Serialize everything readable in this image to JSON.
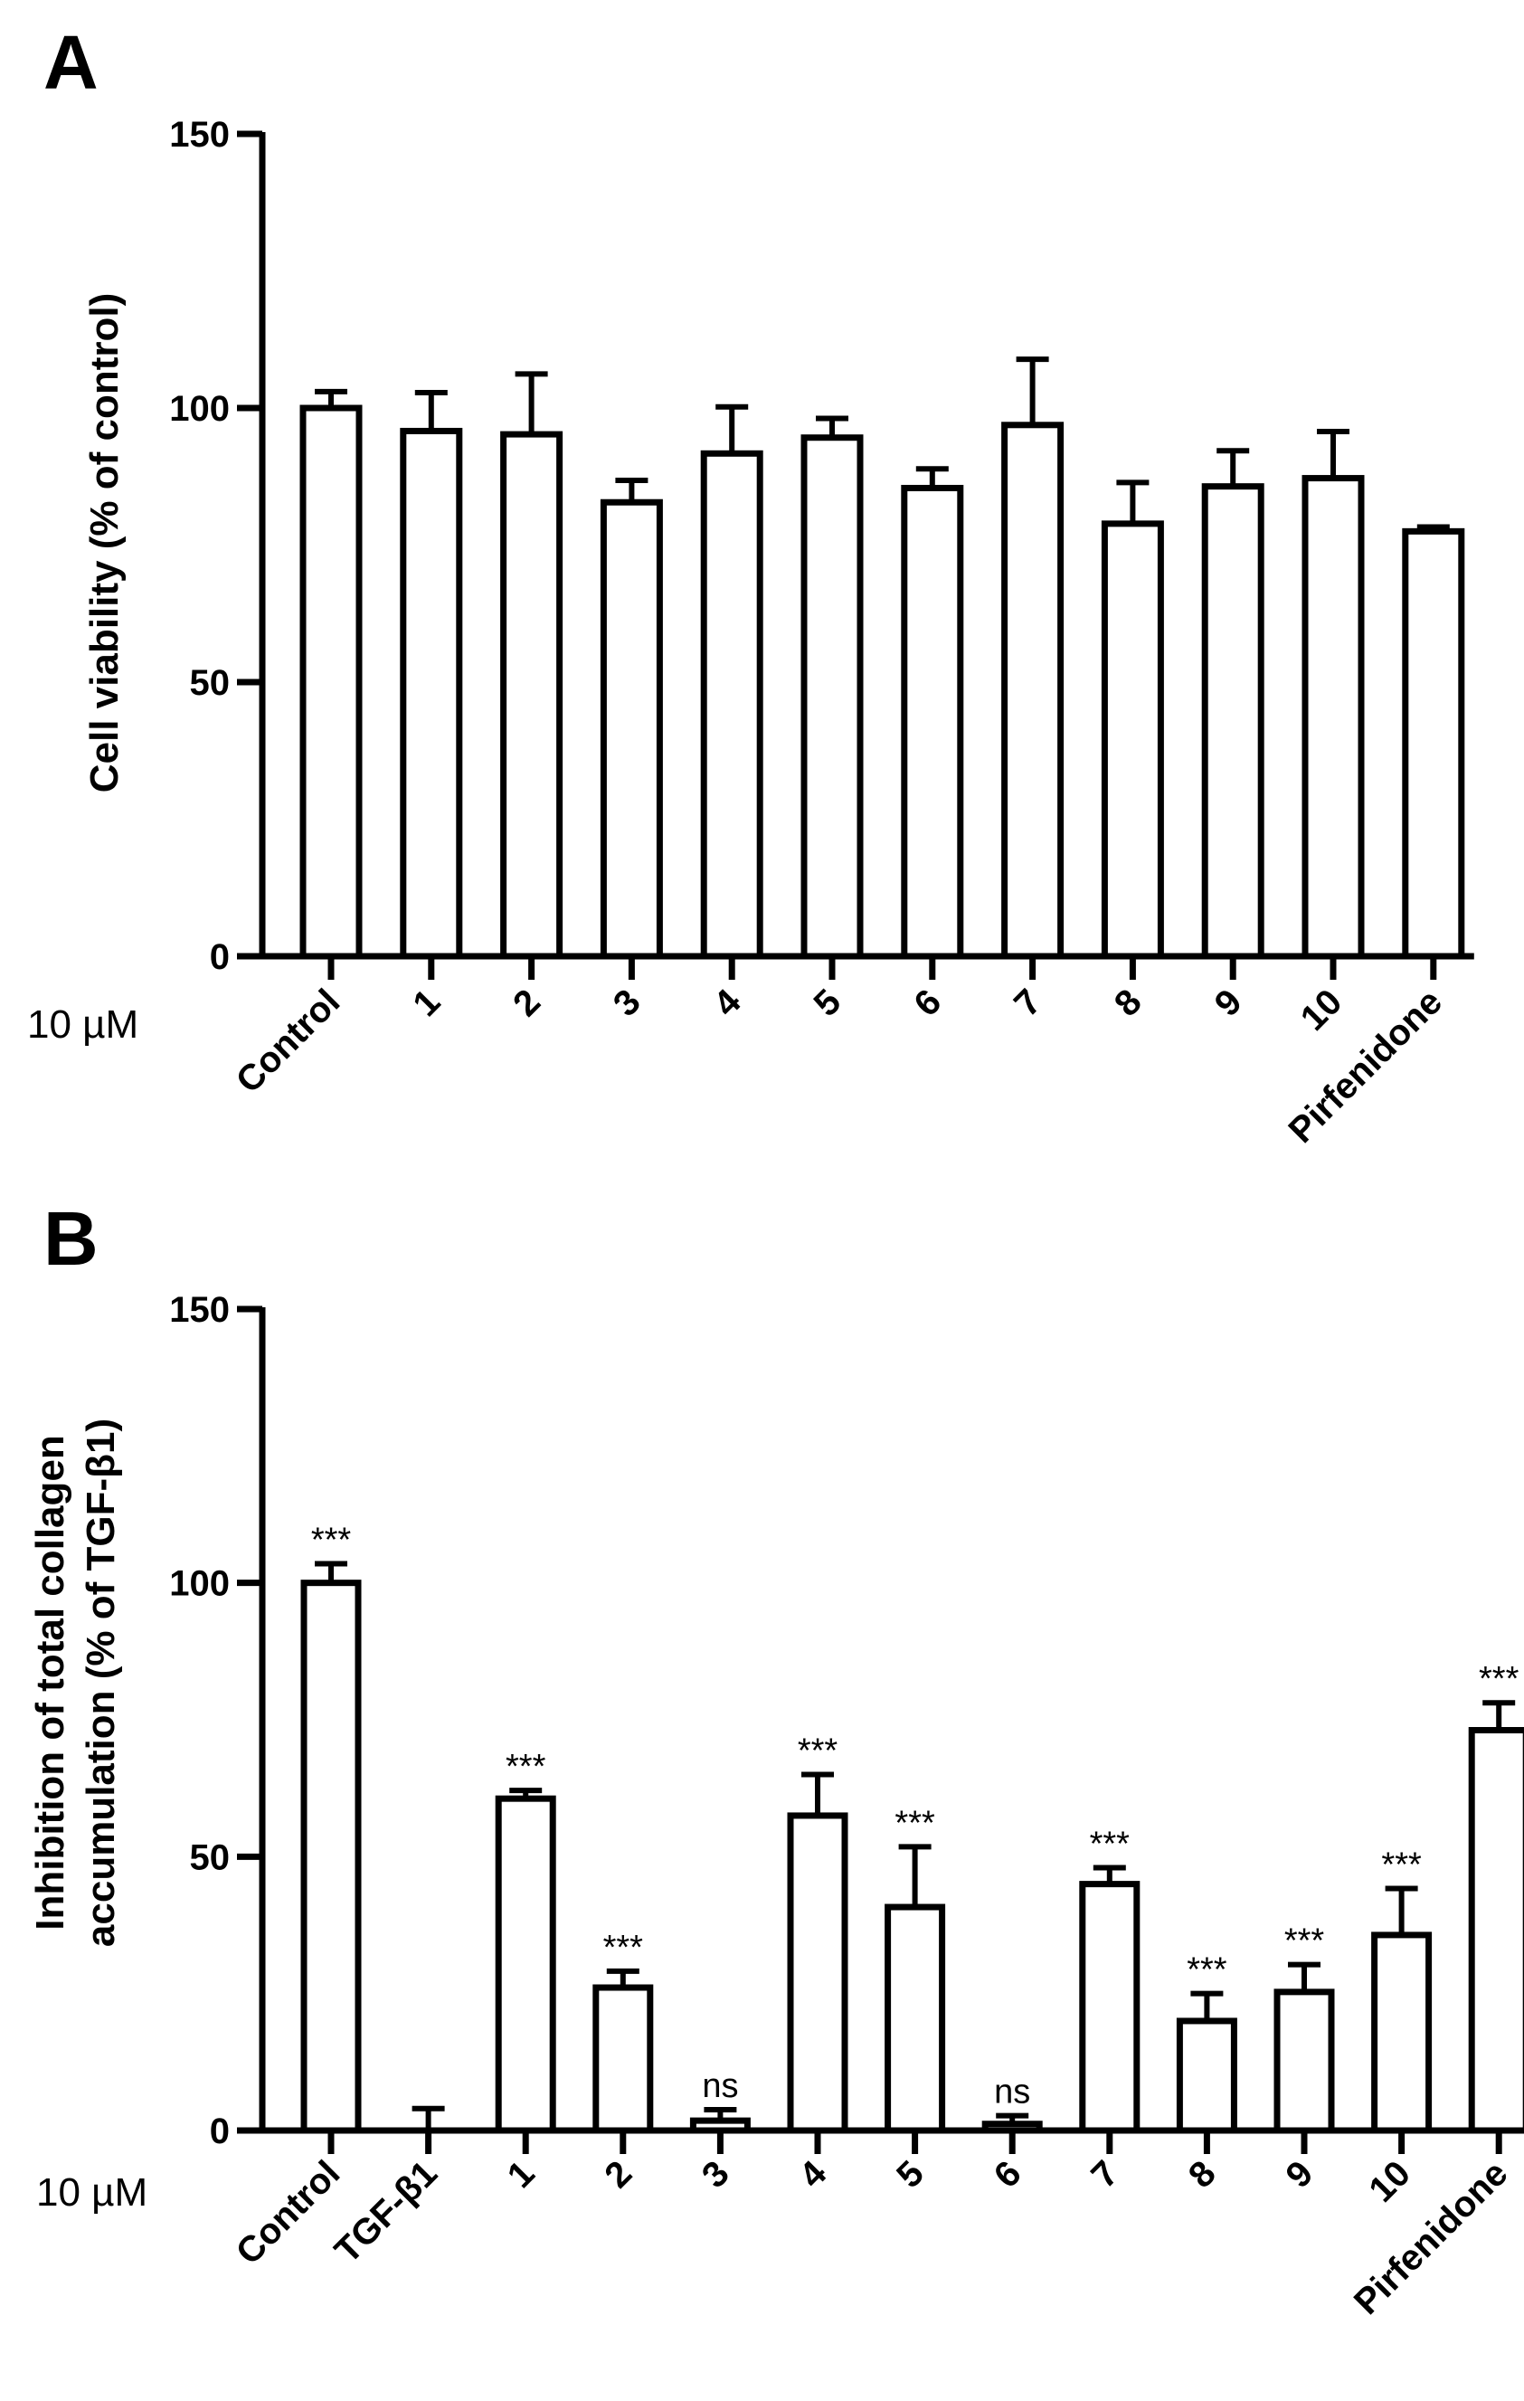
{
  "chart_data": [
    {
      "type": "bar",
      "panel_label": "A",
      "ylabel_lines": [
        "Cell viability (% of control)"
      ],
      "concentration_label": "10 µM",
      "categories": [
        "Control",
        "1",
        "2",
        "3",
        "4",
        "5",
        "6",
        "7",
        "8",
        "9",
        "10",
        "Pirfenidone"
      ],
      "values": [
        100,
        95.8,
        95.2,
        82.8,
        91.7,
        94.6,
        85.4,
        96.9,
        78.9,
        85.7,
        87.2,
        77.5
      ],
      "errors": [
        3,
        7,
        11,
        4,
        8.5,
        3.5,
        3.5,
        12,
        7.5,
        6.5,
        8.5,
        0.8
      ],
      "significance": [],
      "ylim": [
        0,
        150
      ],
      "yticks": [
        0,
        50,
        100,
        150
      ],
      "grid": false,
      "colors": {
        "bar_fill": "#ffffff",
        "bar_stroke": "#000000"
      }
    },
    {
      "type": "bar",
      "panel_label": "B",
      "ylabel_lines": [
        "Inhibition of total collagen",
        "accumulation (% of TGF-β1)"
      ],
      "concentration_label": "10 µM",
      "categories": [
        "Control",
        "TGF-β1",
        "1",
        "2",
        "3",
        "4",
        "5",
        "6",
        "7",
        "8",
        "9",
        "10",
        "Pirfenidone"
      ],
      "values": [
        100,
        0,
        60.6,
        26.1,
        1.8,
        57.5,
        40.8,
        1.2,
        45.0,
        20.0,
        25.3,
        35.7,
        73.1
      ],
      "errors": [
        3.5,
        4,
        1.5,
        3,
        2,
        7.5,
        11,
        1.5,
        3,
        5,
        5,
        8.5,
        5
      ],
      "significance": [
        "***",
        "",
        "***",
        "***",
        "ns",
        "***",
        "***",
        "ns",
        "***",
        "***",
        "***",
        "***",
        "***"
      ],
      "ylim": [
        0,
        150
      ],
      "yticks": [
        0,
        50,
        100,
        150
      ],
      "grid": false,
      "colors": {
        "bar_fill": "#ffffff",
        "bar_stroke": "#000000"
      }
    }
  ]
}
